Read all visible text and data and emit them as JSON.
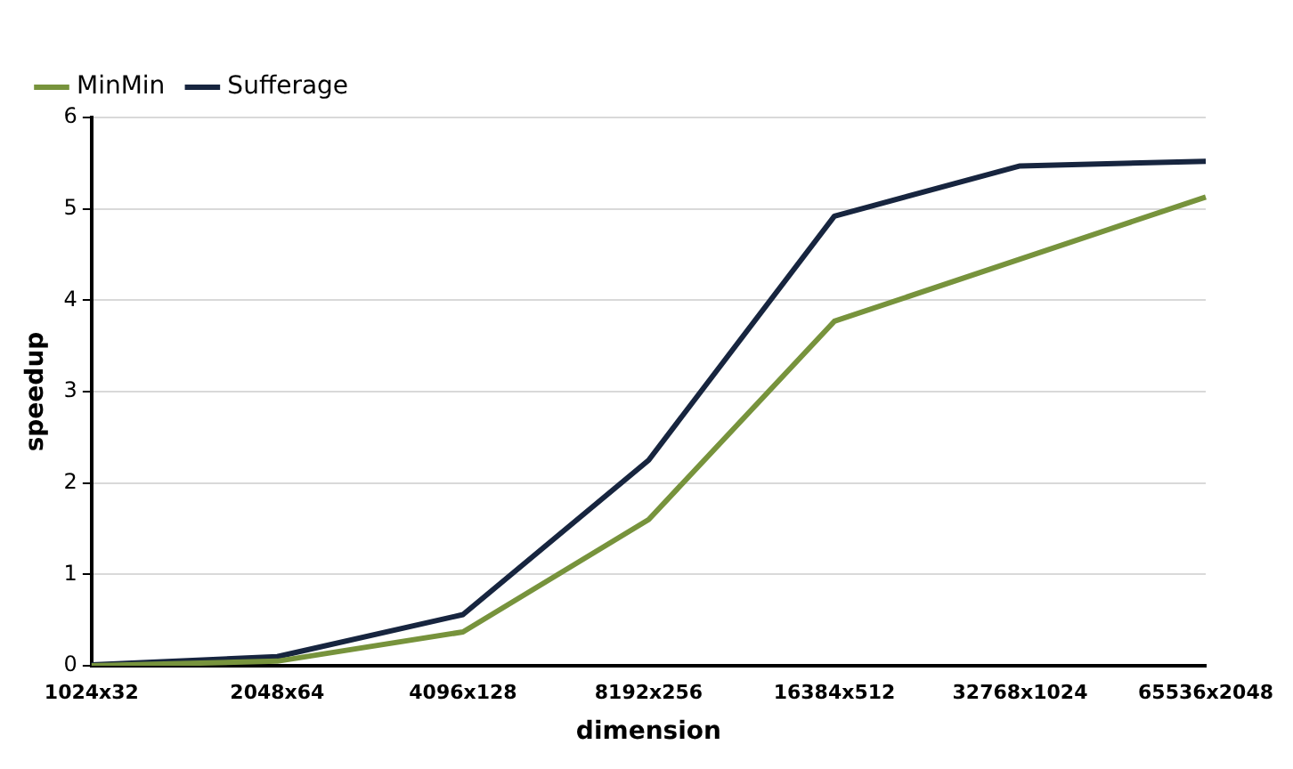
{
  "chart_data": {
    "type": "line",
    "xlabel": "dimension",
    "ylabel": "speedup",
    "categories": [
      "1024x32",
      "2048x64",
      "4096x128",
      "8192x256",
      "16384x512",
      "32768x1024",
      "65536x2048"
    ],
    "series": [
      {
        "name": "MinMin",
        "color": "#77933c",
        "values": [
          0,
          0.05,
          0.37,
          1.6,
          3.77,
          4.45,
          5.13
        ]
      },
      {
        "name": "Sufferage",
        "color": "#17253f",
        "values": [
          0.01,
          0.1,
          0.56,
          2.25,
          4.92,
          5.47,
          5.52
        ]
      }
    ],
    "ylim": [
      0,
      6
    ],
    "yticks": [
      0,
      1,
      2,
      3,
      4,
      5,
      6
    ],
    "grid": "y",
    "legend": "top left",
    "marker": "none",
    "line_style": "solid"
  }
}
